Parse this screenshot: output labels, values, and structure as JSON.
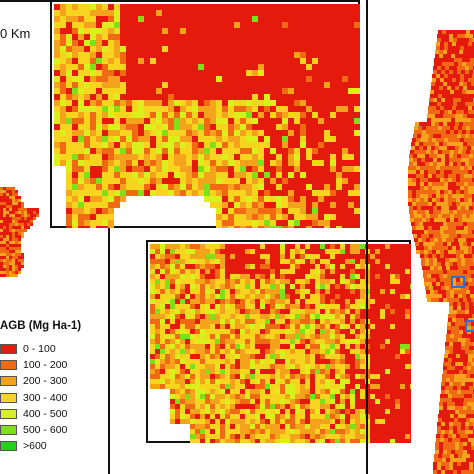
{
  "scale_label": "0 Km",
  "legend": {
    "title": "AGB (Mg Ha-1)",
    "items": [
      {
        "label": "0 - 100",
        "color": "#e41a0c"
      },
      {
        "label": "100 - 200",
        "color": "#f06a14"
      },
      {
        "label": "200 - 300",
        "color": "#f5a21c"
      },
      {
        "label": "300 - 400",
        "color": "#f7d51e"
      },
      {
        "label": "400 - 500",
        "color": "#d9f01c"
      },
      {
        "label": "500 - 600",
        "color": "#7fe01a"
      },
      {
        "label": ">600",
        "color": "#22d11a"
      }
    ]
  },
  "colors": {
    "frame": "#111111",
    "marker": "#2f6fd1"
  }
}
